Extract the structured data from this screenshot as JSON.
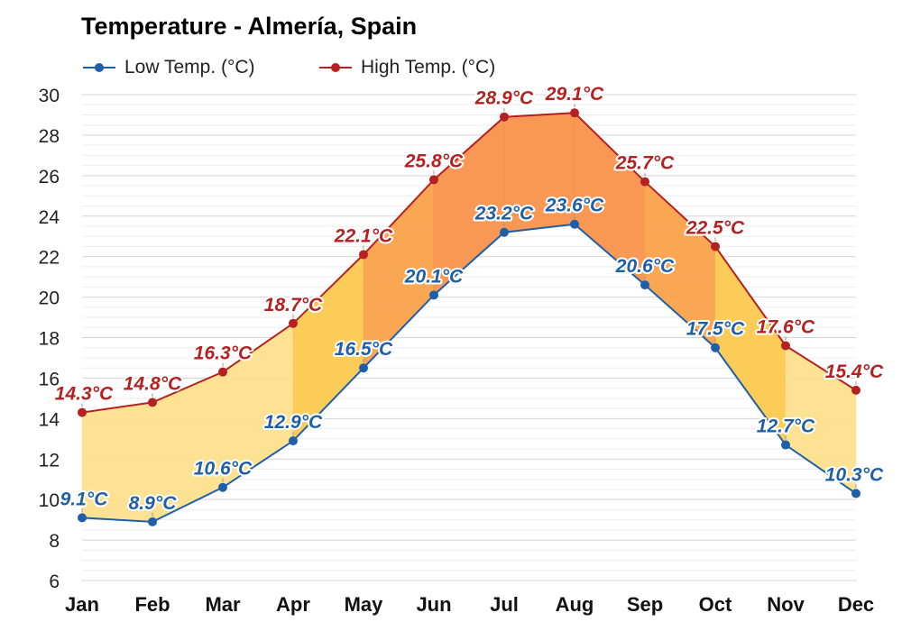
{
  "chart_data": {
    "type": "area",
    "title": "Temperature - Almería, Spain",
    "categories": [
      "Jan",
      "Feb",
      "Mar",
      "Apr",
      "May",
      "Jun",
      "Jul",
      "Aug",
      "Sep",
      "Oct",
      "Nov",
      "Dec"
    ],
    "series": [
      {
        "name": "Low Temp. (°C)",
        "color": "#1f5fa8",
        "values": [
          9.1,
          8.9,
          10.6,
          12.9,
          16.5,
          20.1,
          23.2,
          23.6,
          20.6,
          17.5,
          12.7,
          10.3
        ],
        "labels": [
          "9.1°C",
          "8.9°C",
          "10.6°C",
          "12.9°C",
          "16.5°C",
          "20.1°C",
          "23.2°C",
          "23.6°C",
          "20.6°C",
          "17.5°C",
          "12.7°C",
          "10.3°C"
        ]
      },
      {
        "name": "High Temp. (°C)",
        "color": "#b52020",
        "values": [
          14.3,
          14.8,
          16.3,
          18.7,
          22.1,
          25.8,
          28.9,
          29.1,
          25.7,
          22.5,
          17.6,
          15.4
        ],
        "labels": [
          "14.3°C",
          "14.8°C",
          "16.3°C",
          "18.7°C",
          "22.1°C",
          "25.8°C",
          "28.9°C",
          "29.1°C",
          "25.7°C",
          "22.5°C",
          "17.6°C",
          "15.4°C"
        ]
      }
    ],
    "ylim": [
      6,
      30
    ],
    "yticks": [
      6,
      8,
      10,
      12,
      14,
      16,
      18,
      20,
      22,
      24,
      26,
      28,
      30
    ],
    "ytick_labels": [
      "6",
      "8",
      "10",
      "12",
      "14",
      "16",
      "18",
      "20",
      "22",
      "24",
      "26",
      "28",
      "30"
    ],
    "grid": true,
    "legend_position": "top-left",
    "band_colors": [
      "#fde08a",
      "#fbc94a",
      "#fbb246",
      "#fa9f45",
      "#f98f45"
    ]
  }
}
